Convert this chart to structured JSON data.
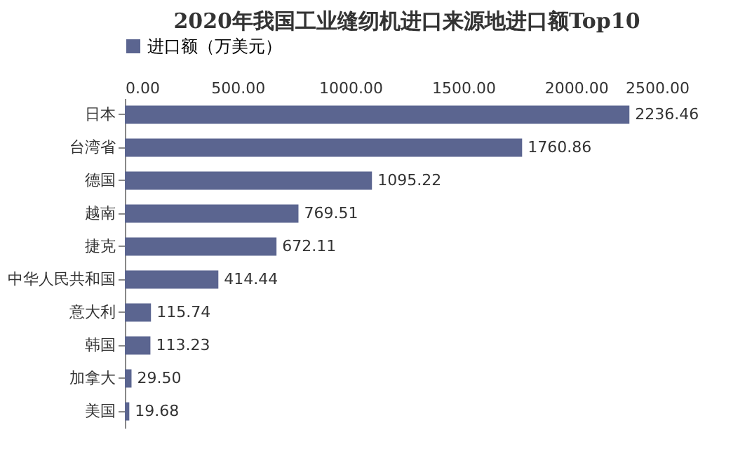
{
  "chart_data": {
    "type": "bar",
    "orientation": "horizontal",
    "title": "2020年我国工业缝纫机进口来源地进口额Top10",
    "categories": [
      "日本",
      "台湾省",
      "德国",
      "越南",
      "捷克",
      "中华人民共和国",
      "意大利",
      "韩国",
      "加拿大",
      "美国"
    ],
    "series": [
      {
        "name": "进口额（万美元）",
        "color": "#5b6590",
        "values": [
          2236.46,
          1760.86,
          1095.22,
          769.51,
          672.11,
          414.44,
          115.74,
          113.23,
          29.5,
          19.68
        ]
      }
    ],
    "value_labels": [
      "2236.46",
      "1760.86",
      "1095.22",
      "769.51",
      "672.11",
      "414.44",
      "115.74",
      "113.23",
      "29.50",
      "19.68"
    ],
    "xlim": [
      0,
      2500
    ],
    "xticks": [
      {
        "value": 0,
        "label": "0.00"
      },
      {
        "value": 500,
        "label": "500.00"
      },
      {
        "value": 1000,
        "label": "1000.00"
      },
      {
        "value": 1500,
        "label": "1500.00"
      },
      {
        "value": 2000,
        "label": "2000.00"
      },
      {
        "value": 2500,
        "label": "2500.00"
      }
    ],
    "legend": "top",
    "grid": false
  }
}
